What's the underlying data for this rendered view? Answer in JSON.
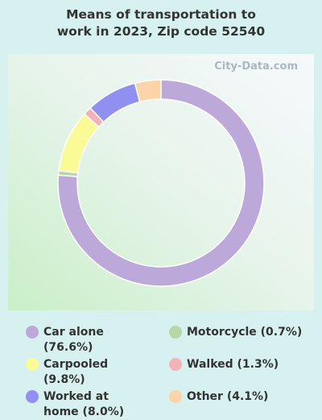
{
  "chart_data": {
    "type": "donut",
    "title": "Means of transportation to work in 2023, Zip code 52540",
    "watermark": "City-Data.com",
    "categories": [
      "Car alone (76.6%)",
      "Motorcycle (0.7%)",
      "Carpooled (9.8%)",
      "Walked (1.3%)",
      "Worked at home (8.0%)",
      "Other (4.1%)"
    ],
    "values": [
      76.6,
      0.7,
      9.8,
      1.3,
      8.0,
      4.1
    ],
    "colors": [
      "#bca9da",
      "#b9d7a6",
      "#fafa96",
      "#f4b2b8",
      "#9090f0",
      "#fcd4a9"
    ]
  }
}
